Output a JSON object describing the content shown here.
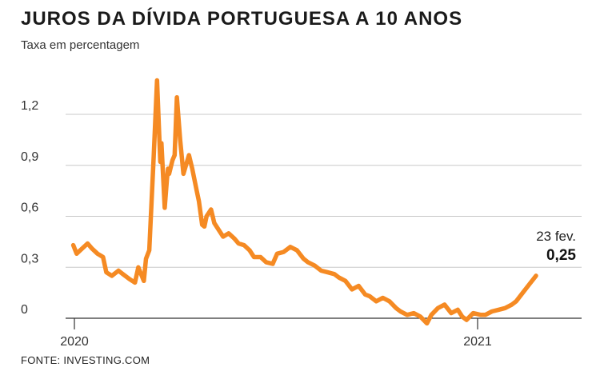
{
  "header": {
    "title": "JUROS DA DÍVIDA PORTUGUESA A 10 ANOS",
    "subtitle": "Taxa em percentagem"
  },
  "footer": {
    "source": "FONTE: INVESTING.COM"
  },
  "colors": {
    "line": "#F58A23",
    "grid": "#c8c8c8",
    "axis": "#333333"
  },
  "chart_data": {
    "type": "line",
    "title": "JUROS DA DÍVIDA PORTUGUESA A 10 ANOS",
    "subtitle": "Taxa em percentagem",
    "xlabel": "",
    "ylabel": "",
    "ylim": [
      0,
      1.2
    ],
    "yticks": [
      0,
      0.3,
      0.6,
      0.9,
      1.2
    ],
    "ytick_labels": [
      "0",
      "0,3",
      "0,6",
      "0,9",
      "1,2"
    ],
    "xtick_labels": [
      {
        "label": "2020",
        "x": "2020-01-01"
      },
      {
        "label": "2021",
        "x": "2021-01-01"
      }
    ],
    "grid": true,
    "annotation": {
      "date_label": "23 fev.",
      "value_label": "0,25",
      "x": "2021-02-23",
      "y": 0.25
    },
    "series": [
      {
        "x": [
          "2019-12-31",
          "2020-01-03",
          "2020-01-08",
          "2020-01-13",
          "2020-01-17",
          "2020-01-22",
          "2020-01-27",
          "2020-01-30",
          "2020-02-04",
          "2020-02-10",
          "2020-02-14",
          "2020-02-20",
          "2020-02-25",
          "2020-02-28",
          "2020-03-04",
          "2020-03-06",
          "2020-03-09",
          "2020-03-11",
          "2020-03-13",
          "2020-03-16",
          "2020-03-18",
          "2020-03-19",
          "2020-03-20",
          "2020-03-23",
          "2020-03-25",
          "2020-03-26",
          "2020-03-27",
          "2020-03-30",
          "2020-04-01",
          "2020-04-03",
          "2020-04-06",
          "2020-04-09",
          "2020-04-14",
          "2020-04-17",
          "2020-04-21",
          "2020-04-23",
          "2020-04-26",
          "2020-04-28",
          "2020-04-30",
          "2020-05-04",
          "2020-05-07",
          "2020-05-11",
          "2020-05-15",
          "2020-05-20",
          "2020-05-25",
          "2020-05-29",
          "2020-06-03",
          "2020-06-08",
          "2020-06-12",
          "2020-06-18",
          "2020-06-23",
          "2020-06-29",
          "2020-07-03",
          "2020-07-09",
          "2020-07-15",
          "2020-07-21",
          "2020-07-27",
          "2020-07-31",
          "2020-08-06",
          "2020-08-12",
          "2020-08-18",
          "2020-08-24",
          "2020-08-28",
          "2020-09-03",
          "2020-09-09",
          "2020-09-15",
          "2020-09-21",
          "2020-09-25",
          "2020-10-01",
          "2020-10-07",
          "2020-10-13",
          "2020-10-19",
          "2020-10-23",
          "2020-10-29",
          "2020-11-04",
          "2020-11-10",
          "2020-11-16",
          "2020-11-20",
          "2020-11-26",
          "2020-12-02",
          "2020-12-08",
          "2020-12-14",
          "2020-12-18",
          "2020-12-22",
          "2020-12-28",
          "2021-01-04",
          "2021-01-08",
          "2021-01-14",
          "2021-01-20",
          "2021-01-26",
          "2021-02-01",
          "2021-02-05",
          "2021-02-11",
          "2021-02-17",
          "2021-02-23"
        ],
        "values": [
          0.43,
          0.38,
          0.41,
          0.44,
          0.41,
          0.38,
          0.36,
          0.27,
          0.25,
          0.28,
          0.26,
          0.23,
          0.21,
          0.3,
          0.22,
          0.35,
          0.4,
          0.68,
          0.95,
          1.4,
          1.08,
          0.92,
          1.03,
          0.65,
          0.82,
          0.88,
          0.85,
          0.93,
          0.96,
          1.3,
          1.05,
          0.85,
          0.96,
          0.88,
          0.75,
          0.69,
          0.55,
          0.54,
          0.6,
          0.64,
          0.56,
          0.52,
          0.48,
          0.5,
          0.47,
          0.44,
          0.43,
          0.4,
          0.36,
          0.36,
          0.33,
          0.32,
          0.38,
          0.39,
          0.42,
          0.4,
          0.35,
          0.33,
          0.31,
          0.28,
          0.27,
          0.26,
          0.24,
          0.22,
          0.17,
          0.19,
          0.14,
          0.13,
          0.1,
          0.12,
          0.1,
          0.06,
          0.04,
          0.02,
          0.03,
          0.01,
          -0.03,
          0.02,
          0.06,
          0.08,
          0.03,
          0.05,
          0.01,
          -0.01,
          0.03,
          0.02,
          0.02,
          0.04,
          0.05,
          0.06,
          0.08,
          0.1,
          0.15,
          0.2,
          0.25
        ]
      }
    ]
  }
}
